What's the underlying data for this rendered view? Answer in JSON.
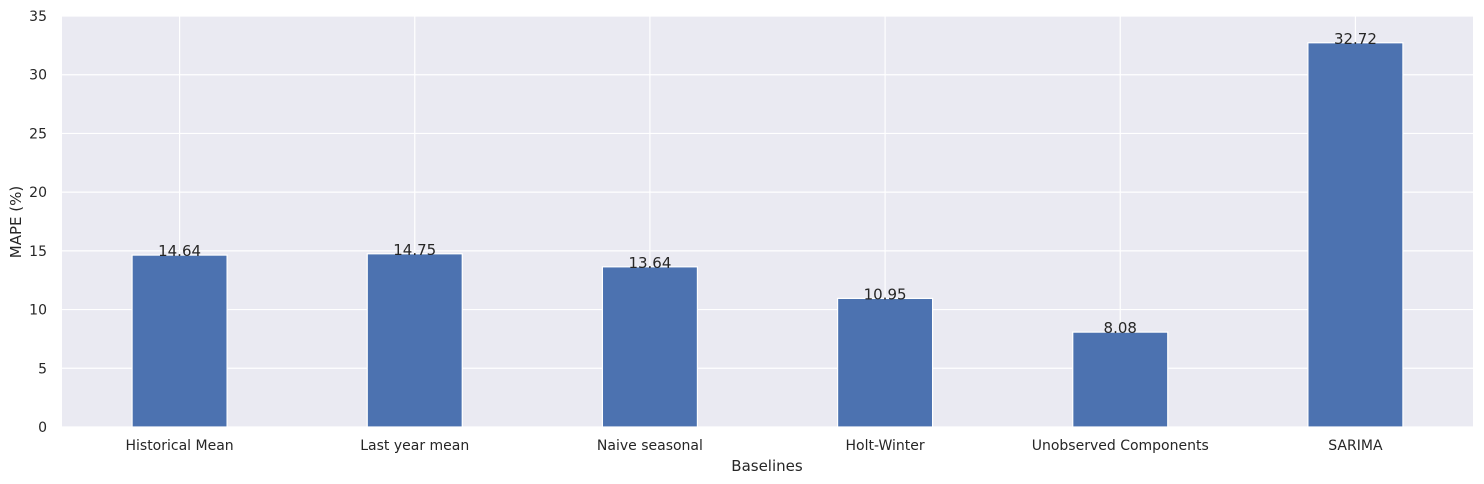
{
  "chart_data": {
    "type": "bar",
    "title": "",
    "xlabel": "Baselines",
    "ylabel": "MAPE (%)",
    "categories": [
      "Historical Mean",
      "Last year mean",
      "Naive seasonal",
      "Holt-Winter",
      "Unobserved Components",
      "SARIMA"
    ],
    "values": [
      14.64,
      14.75,
      13.64,
      10.95,
      8.08,
      32.72
    ],
    "value_labels": [
      "14.64",
      "14.75",
      "13.64",
      "10.95",
      "8.08",
      "32.72"
    ],
    "ylim": [
      0,
      35
    ],
    "yticks": [
      0,
      5,
      10,
      15,
      20,
      25,
      30,
      35
    ],
    "ytick_labels": [
      "0",
      "5",
      "10",
      "15",
      "20",
      "25",
      "30",
      "35"
    ],
    "grid": true,
    "legend": "none",
    "colors": {
      "bar": "#4c72b0",
      "plot_background": "#eaeaf2",
      "grid": "#ffffff",
      "text": "#262626"
    }
  }
}
